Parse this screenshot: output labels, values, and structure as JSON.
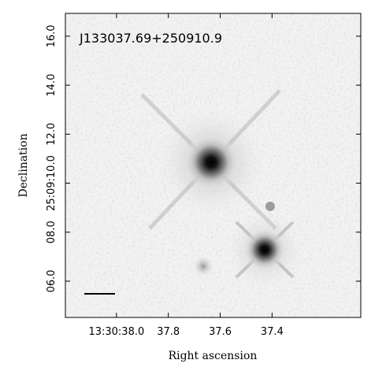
{
  "chart_data": {
    "type": "image",
    "title": "J133037.69+250910.9",
    "x_label": "Right ascension",
    "y_label": "Declination",
    "xlim": [
      38.197,
      37.058
    ],
    "xticks": [
      {
        "value": 38.0,
        "label": "13:30:38.0"
      },
      37.8,
      37.6,
      37.4
    ],
    "ylim": [
      4.52,
      16.93
    ],
    "yticks": [
      {
        "value": 6,
        "label": "06.0"
      },
      {
        "value": 8,
        "label": "08.0"
      },
      {
        "value": 10,
        "label": "25:09:10.0"
      },
      {
        "value": 12,
        "label": "12.0"
      },
      {
        "value": 14,
        "label": "14.0"
      },
      {
        "value": 16,
        "label": "16.0"
      }
    ]
  }
}
